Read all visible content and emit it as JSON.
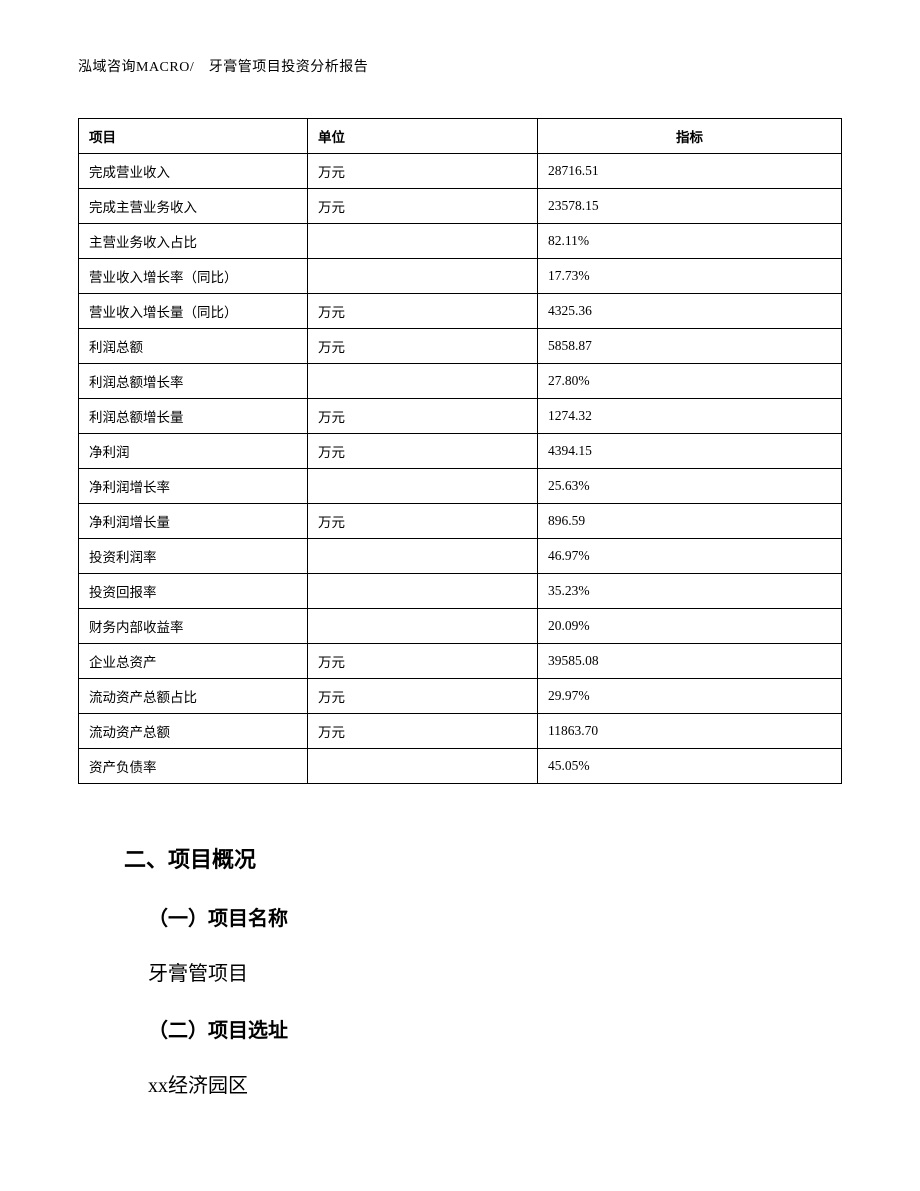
{
  "header": "泓域咨询MACRO/　牙膏管项目投资分析报告",
  "table": {
    "columns": {
      "item": "项目",
      "unit": "单位",
      "metric": "指标"
    },
    "rows": [
      {
        "item": "完成营业收入",
        "unit": "万元",
        "metric": "28716.51"
      },
      {
        "item": "完成主营业务收入",
        "unit": "万元",
        "metric": "23578.15"
      },
      {
        "item": "主营业务收入占比",
        "unit": "",
        "metric": "82.11%"
      },
      {
        "item": "营业收入增长率（同比）",
        "unit": "",
        "metric": "17.73%"
      },
      {
        "item": "营业收入增长量（同比）",
        "unit": "万元",
        "metric": "4325.36"
      },
      {
        "item": "利润总额",
        "unit": "万元",
        "metric": "5858.87"
      },
      {
        "item": "利润总额增长率",
        "unit": "",
        "metric": "27.80%"
      },
      {
        "item": "利润总额增长量",
        "unit": "万元",
        "metric": "1274.32"
      },
      {
        "item": "净利润",
        "unit": "万元",
        "metric": "4394.15"
      },
      {
        "item": "净利润增长率",
        "unit": "",
        "metric": "25.63%"
      },
      {
        "item": "净利润增长量",
        "unit": "万元",
        "metric": "896.59"
      },
      {
        "item": "投资利润率",
        "unit": "",
        "metric": "46.97%"
      },
      {
        "item": "投资回报率",
        "unit": "",
        "metric": "35.23%"
      },
      {
        "item": "财务内部收益率",
        "unit": "",
        "metric": "20.09%"
      },
      {
        "item": "企业总资产",
        "unit": "万元",
        "metric": "39585.08"
      },
      {
        "item": "流动资产总额占比",
        "unit": "万元",
        "metric": "29.97%"
      },
      {
        "item": "流动资产总额",
        "unit": "万元",
        "metric": "11863.70"
      },
      {
        "item": "资产负债率",
        "unit": "",
        "metric": "45.05%"
      }
    ]
  },
  "sections": {
    "h2": "二、项目概况",
    "sub1_title": "（一）项目名称",
    "sub1_body": "牙膏管项目",
    "sub2_title": "（二）项目选址",
    "sub2_body": "xx经济园区"
  }
}
